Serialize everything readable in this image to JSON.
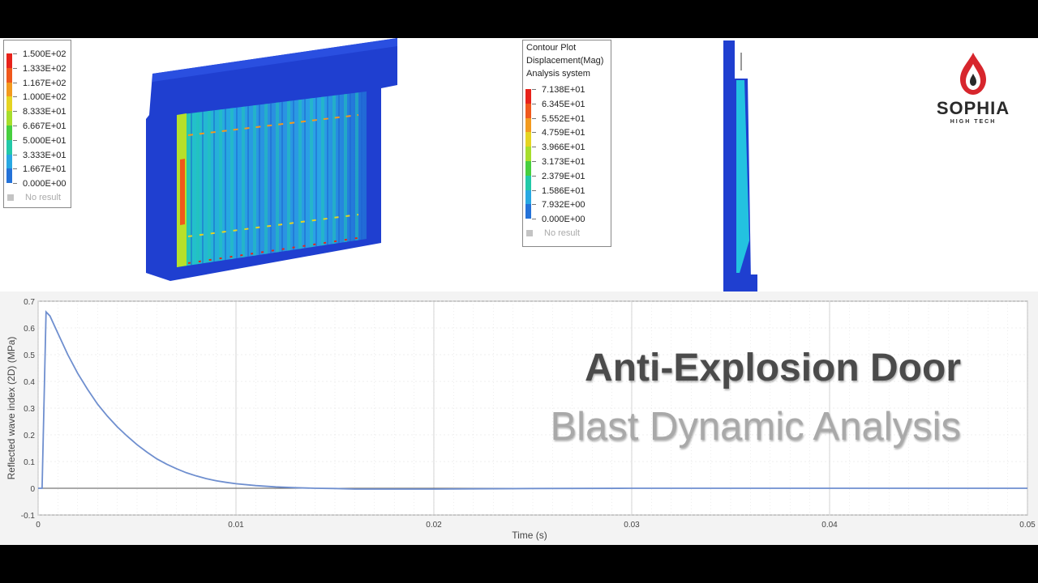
{
  "legend_left": {
    "values": [
      "1.500E+02",
      "1.333E+02",
      "1.167E+02",
      "1.000E+02",
      "8.333E+01",
      "6.667E+01",
      "5.000E+01",
      "3.333E+01",
      "1.667E+01",
      "0.000E+00"
    ],
    "no_result": "No result"
  },
  "legend_right": {
    "header": [
      "Contour Plot",
      "Displacement(Mag)",
      "Analysis system"
    ],
    "values": [
      "7.138E+01",
      "6.345E+01",
      "5.552E+01",
      "4.759E+01",
      "3.966E+01",
      "3.173E+01",
      "2.379E+01",
      "1.586E+01",
      "7.932E+00",
      "0.000E+00"
    ],
    "no_result": "No result"
  },
  "contour_colors": [
    "#e8221a",
    "#f0581c",
    "#f39a1e",
    "#e5d422",
    "#a7de2c",
    "#47cf3f",
    "#22c9a8",
    "#28a8e2",
    "#2472d8",
    "#1b3fc4"
  ],
  "logo": {
    "name": "SOPHIA",
    "tagline": "HIGH TECH",
    "colors": {
      "drop": "#d7262d",
      "text": "#2a2a2a"
    }
  },
  "overlay": {
    "title": "Anti-Explosion Door",
    "subtitle": "Blast Dynamic Analysis"
  },
  "chart_data": {
    "type": "line",
    "xlabel": "Time (s)",
    "ylabel": "Reflected wave index (2D) (MPa)",
    "xlim": [
      0,
      0.05
    ],
    "ylim": [
      -0.1,
      0.7
    ],
    "xticks": [
      0,
      0.01,
      0.02,
      0.03,
      0.04,
      0.05
    ],
    "yticks": [
      -0.1,
      0,
      0.1,
      0.2,
      0.3,
      0.4,
      0.5,
      0.6,
      0.7
    ],
    "grid": true,
    "series_color": "#6f8fcf",
    "x": [
      0,
      0.0002,
      0.0004,
      0.0006,
      0.001,
      0.0015,
      0.002,
      0.0025,
      0.003,
      0.0035,
      0.004,
      0.0045,
      0.005,
      0.0055,
      0.006,
      0.0065,
      0.007,
      0.0075,
      0.008,
      0.0085,
      0.009,
      0.0095,
      0.01,
      0.011,
      0.012,
      0.013,
      0.014,
      0.015,
      0.016,
      0.018,
      0.02,
      0.022,
      0.025,
      0.03,
      0.035,
      0.04,
      0.045,
      0.05
    ],
    "y": [
      0,
      0,
      0.66,
      0.645,
      0.58,
      0.5,
      0.43,
      0.37,
      0.315,
      0.27,
      0.23,
      0.195,
      0.163,
      0.135,
      0.11,
      0.09,
      0.073,
      0.058,
      0.046,
      0.036,
      0.028,
      0.022,
      0.017,
      0.01,
      0.005,
      0.002,
      0.0,
      -0.001,
      -0.003,
      -0.003,
      -0.003,
      -0.002,
      -0.001,
      0,
      0,
      0,
      0,
      0
    ]
  }
}
